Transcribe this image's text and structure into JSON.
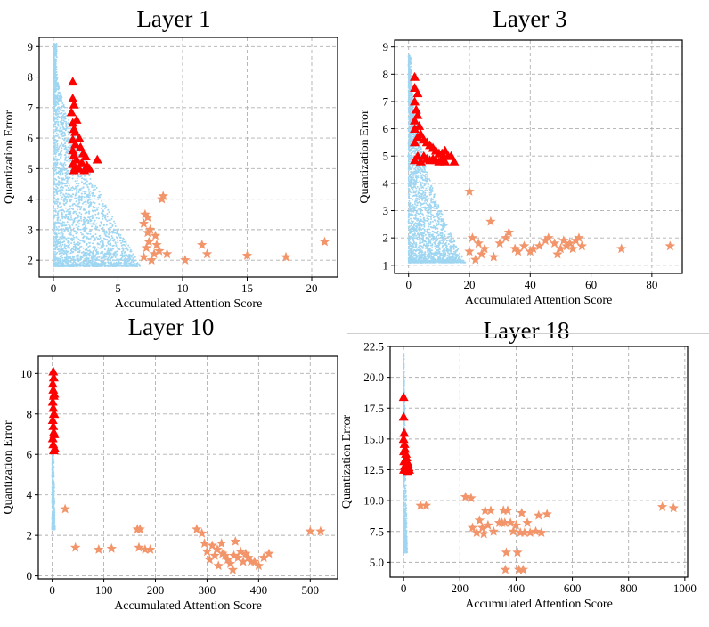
{
  "figure": {
    "panels": [
      {
        "title": "Layer 1"
      },
      {
        "title": "Layer 3"
      },
      {
        "title": "Layer 10"
      },
      {
        "title": "Layer 18"
      }
    ]
  },
  "colors": {
    "normal_tokens": "#9fd6f2",
    "high_error_tokens": "#ff0000",
    "high_attention_tokens": "#f2956b",
    "grid": "#b0b0b0"
  },
  "chart_data": [
    {
      "type": "scatter",
      "title": "Layer 1",
      "xlabel": "Accumulated Attention Score",
      "ylabel": "Quantization Error",
      "xlim": [
        -1.1,
        22
      ],
      "ylim": [
        1.45,
        9.3
      ],
      "xticks": [
        0,
        5,
        10,
        15,
        20
      ],
      "yticks": [
        2,
        3,
        4,
        5,
        6,
        7,
        8,
        9
      ],
      "grid": true,
      "cloud": {
        "xmax_at_ymin": 6.5,
        "xmin": 0,
        "ymin": 1.8,
        "ytop": 9.1,
        "peak_y": 8.2,
        "shape_power": 1.4,
        "count": 2600
      },
      "series": [
        {
          "marker": "triangle",
          "points": [
            [
              1.5,
              7.85
            ],
            [
              1.5,
              7.3
            ],
            [
              1.6,
              7.1
            ],
            [
              1.4,
              6.85
            ],
            [
              1.8,
              6.6
            ],
            [
              1.5,
              6.5
            ],
            [
              1.6,
              6.3
            ],
            [
              1.7,
              6.2
            ],
            [
              2.0,
              6.0
            ],
            [
              1.5,
              5.95
            ],
            [
              1.7,
              5.8
            ],
            [
              2.1,
              5.7
            ],
            [
              1.5,
              5.6
            ],
            [
              2.3,
              5.5
            ],
            [
              1.6,
              5.45
            ],
            [
              2.5,
              5.4
            ],
            [
              1.8,
              5.3
            ],
            [
              2.2,
              5.2
            ],
            [
              1.5,
              5.15
            ],
            [
              2.6,
              5.1
            ],
            [
              1.7,
              5.05
            ],
            [
              2.0,
              5.0
            ],
            [
              3.4,
              5.3
            ],
            [
              2.8,
              5.0
            ],
            [
              1.6,
              4.95
            ],
            [
              2.4,
              4.95
            ]
          ]
        },
        {
          "marker": "star",
          "points": [
            [
              7.0,
              2.1
            ],
            [
              7.2,
              2.4
            ],
            [
              7.0,
              3.2
            ],
            [
              7.1,
              3.5
            ],
            [
              7.3,
              2.9
            ],
            [
              7.4,
              2.6
            ],
            [
              7.5,
              3.0
            ],
            [
              7.8,
              2.2
            ],
            [
              8.0,
              2.5
            ],
            [
              7.3,
              3.4
            ],
            [
              8.4,
              4.0
            ],
            [
              8.5,
              4.1
            ],
            [
              8.2,
              2.3
            ],
            [
              8.8,
              2.2
            ],
            [
              7.6,
              2.0
            ],
            [
              7.9,
              2.8
            ],
            [
              10.2,
              2.0
            ],
            [
              11.5,
              2.5
            ],
            [
              11.9,
              2.2
            ],
            [
              15.0,
              2.15
            ],
            [
              18.0,
              2.1
            ],
            [
              21.0,
              2.6
            ]
          ]
        }
      ]
    },
    {
      "type": "scatter",
      "title": "Layer 3",
      "xlabel": "Accumulated Attention Score",
      "ylabel": "Quantization Error",
      "xlim": [
        -4.6,
        90
      ],
      "ylim": [
        0.7,
        9.25
      ],
      "xticks": [
        0,
        20,
        40,
        60,
        80
      ],
      "yticks": [
        1,
        2,
        3,
        4,
        5,
        6,
        7,
        8,
        9
      ],
      "grid": true,
      "cloud": {
        "xmax_at_ymin": 18,
        "xmin": 0,
        "ymin": 1.1,
        "ytop": 8.7,
        "peak_y": 8.5,
        "shape_power": 2.0,
        "count": 2400
      },
      "series": [
        {
          "marker": "triangle",
          "points": [
            [
              2,
              7.9
            ],
            [
              2,
              7.5
            ],
            [
              3,
              7.3
            ],
            [
              2,
              7.0
            ],
            [
              2.5,
              6.7
            ],
            [
              3,
              6.5
            ],
            [
              2,
              6.3
            ],
            [
              3.5,
              6.1
            ],
            [
              2,
              6.0
            ],
            [
              4,
              5.8
            ],
            [
              3,
              5.7
            ],
            [
              5,
              5.6
            ],
            [
              6,
              5.5
            ],
            [
              2,
              5.5
            ],
            [
              7,
              5.4
            ],
            [
              8,
              5.3
            ],
            [
              9,
              5.2
            ],
            [
              10,
              5.1
            ],
            [
              11,
              5.1
            ],
            [
              12,
              5.2
            ],
            [
              14,
              5.0
            ],
            [
              3,
              5.0
            ],
            [
              5,
              5.0
            ],
            [
              6,
              4.9
            ],
            [
              7,
              4.85
            ],
            [
              8,
              4.9
            ],
            [
              9,
              4.85
            ],
            [
              11,
              4.9
            ],
            [
              13,
              5.0
            ],
            [
              15,
              4.8
            ],
            [
              2,
              4.85
            ],
            [
              4,
              4.8
            ],
            [
              10,
              4.8
            ],
            [
              12,
              4.8
            ]
          ]
        },
        {
          "marker": "star",
          "points": [
            [
              20,
              3.7
            ],
            [
              21,
              2.0
            ],
            [
              20,
              1.5
            ],
            [
              22,
              1.2
            ],
            [
              23,
              1.8
            ],
            [
              24,
              1.4
            ],
            [
              25,
              1.6
            ],
            [
              27,
              2.6
            ],
            [
              28,
              1.3
            ],
            [
              30,
              1.8
            ],
            [
              32,
              2.0
            ],
            [
              33,
              2.2
            ],
            [
              35,
              1.6
            ],
            [
              36,
              1.5
            ],
            [
              38,
              1.7
            ],
            [
              40,
              1.5
            ],
            [
              41,
              1.6
            ],
            [
              43,
              1.7
            ],
            [
              45,
              1.9
            ],
            [
              46,
              2.0
            ],
            [
              48,
              1.8
            ],
            [
              49,
              1.4
            ],
            [
              50,
              1.6
            ],
            [
              51,
              1.9
            ],
            [
              52,
              1.7
            ],
            [
              53,
              1.8
            ],
            [
              54,
              1.6
            ],
            [
              55,
              1.9
            ],
            [
              56,
              2.0
            ],
            [
              57,
              1.7
            ],
            [
              70,
              1.6
            ],
            [
              86,
              1.7
            ]
          ]
        }
      ]
    },
    {
      "type": "scatter",
      "title": "Layer 10",
      "xlabel": "Accumulated Attention Score",
      "ylabel": "Quantization Error",
      "xlim": [
        -27,
        553
      ],
      "ylim": [
        -0.15,
        10.85
      ],
      "xticks": [
        0,
        100,
        200,
        300,
        400,
        500
      ],
      "yticks": [
        0,
        2,
        4,
        6,
        8,
        10
      ],
      "grid": true,
      "cloud": {
        "xmax_at_ymin": 5,
        "xmin": 0,
        "ymin": 2.3,
        "ytop": 10.0,
        "peak_y": 10.0,
        "shape_power": 1.0,
        "count": 700
      },
      "series": [
        {
          "marker": "triangle",
          "points": [
            [
              2,
              10.1
            ],
            [
              3,
              9.8
            ],
            [
              1,
              9.5
            ],
            [
              2,
              9.2
            ],
            [
              3,
              8.9
            ],
            [
              1,
              8.6
            ],
            [
              2,
              8.3
            ],
            [
              3,
              8.0
            ],
            [
              1,
              7.7
            ],
            [
              2,
              7.4
            ],
            [
              3,
              7.1
            ],
            [
              1,
              6.8
            ],
            [
              2,
              6.5
            ],
            [
              3,
              6.2
            ],
            [
              4,
              9.0
            ],
            [
              4,
              8.0
            ],
            [
              4,
              7.0
            ],
            [
              5,
              6.3
            ]
          ]
        },
        {
          "marker": "star",
          "points": [
            [
              25,
              3.3
            ],
            [
              45,
              1.4
            ],
            [
              90,
              1.3
            ],
            [
              115,
              1.35
            ],
            [
              165,
              2.3
            ],
            [
              170,
              2.3
            ],
            [
              168,
              1.4
            ],
            [
              180,
              1.3
            ],
            [
              190,
              1.3
            ],
            [
              280,
              2.3
            ],
            [
              290,
              2.1
            ],
            [
              295,
              1.6
            ],
            [
              300,
              1.2
            ],
            [
              305,
              0.8
            ],
            [
              310,
              1.5
            ],
            [
              315,
              1.0
            ],
            [
              320,
              1.3
            ],
            [
              322,
              0.5
            ],
            [
              328,
              1.6
            ],
            [
              330,
              1.1
            ],
            [
              335,
              1.0
            ],
            [
              340,
              0.8
            ],
            [
              345,
              0.6
            ],
            [
              350,
              0.3
            ],
            [
              352,
              1.0
            ],
            [
              355,
              1.7
            ],
            [
              360,
              0.9
            ],
            [
              365,
              1.2
            ],
            [
              370,
              0.7
            ],
            [
              375,
              1.1
            ],
            [
              380,
              0.9
            ],
            [
              385,
              0.7
            ],
            [
              392,
              0.7
            ],
            [
              400,
              0.5
            ],
            [
              410,
              0.9
            ],
            [
              420,
              1.1
            ],
            [
              500,
              2.2
            ],
            [
              520,
              2.2
            ]
          ]
        }
      ]
    },
    {
      "type": "scatter",
      "title": "Layer 18",
      "xlabel": "Accumulated Attention Score",
      "ylabel": "Quantization Error",
      "xlim": [
        -48,
        1010
      ],
      "ylim": [
        3.8,
        22.5
      ],
      "xticks": [
        0,
        200,
        400,
        600,
        800,
        1000
      ],
      "yticks": [
        5.0,
        7.5,
        10.0,
        12.5,
        15.0,
        17.5,
        20.0,
        22.5
      ],
      "grid": true,
      "cloud": {
        "xmax_at_ymin": 12,
        "xmin": 0,
        "ymin": 5.8,
        "ytop": 21.8,
        "peak_y": 21.8,
        "shape_power": 1.0,
        "count": 600
      },
      "series": [
        {
          "marker": "triangle",
          "points": [
            [
              0,
              18.4
            ],
            [
              0,
              16.8
            ],
            [
              2,
              15.5
            ],
            [
              0,
              15.0
            ],
            [
              3,
              14.6
            ],
            [
              5,
              14.2
            ],
            [
              1,
              14.0
            ],
            [
              8,
              13.8
            ],
            [
              10,
              13.5
            ],
            [
              2,
              13.2
            ],
            [
              12,
              13.2
            ],
            [
              15,
              13.0
            ],
            [
              4,
              12.8
            ],
            [
              6,
              12.6
            ],
            [
              1,
              12.5
            ],
            [
              18,
              12.7
            ],
            [
              9,
              12.5
            ],
            [
              13,
              12.4
            ],
            [
              20,
              12.5
            ]
          ]
        },
        {
          "marker": "star",
          "points": [
            [
              60,
              9.6
            ],
            [
              80,
              9.6
            ],
            [
              220,
              10.3
            ],
            [
              240,
              10.2
            ],
            [
              245,
              7.8
            ],
            [
              260,
              7.4
            ],
            [
              270,
              8.4
            ],
            [
              280,
              7.8
            ],
            [
              285,
              7.3
            ],
            [
              290,
              9.2
            ],
            [
              300,
              8.0
            ],
            [
              310,
              9.2
            ],
            [
              320,
              7.5
            ],
            [
              340,
              8.2
            ],
            [
              350,
              8.2
            ],
            [
              355,
              9.2
            ],
            [
              360,
              8.2
            ],
            [
              362,
              4.4
            ],
            [
              365,
              5.8
            ],
            [
              370,
              9.2
            ],
            [
              380,
              8.2
            ],
            [
              390,
              7.5
            ],
            [
              400,
              8.0
            ],
            [
              405,
              5.8
            ],
            [
              410,
              4.4
            ],
            [
              415,
              7.4
            ],
            [
              420,
              9.0
            ],
            [
              425,
              4.4
            ],
            [
              430,
              7.4
            ],
            [
              440,
              8.2
            ],
            [
              450,
              7.4
            ],
            [
              470,
              7.5
            ],
            [
              480,
              8.8
            ],
            [
              490,
              7.4
            ],
            [
              510,
              8.9
            ],
            [
              920,
              9.5
            ],
            [
              960,
              9.4
            ]
          ]
        }
      ]
    }
  ]
}
